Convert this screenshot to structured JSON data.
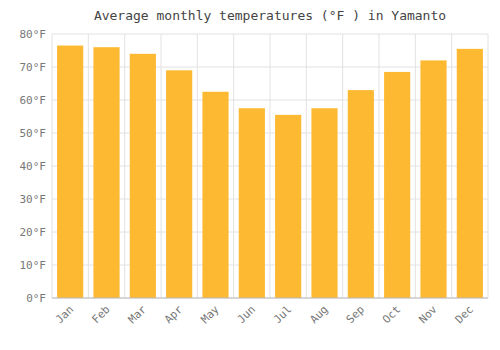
{
  "chart_data": {
    "type": "bar",
    "title": "Average monthly temperatures (°F ) in Yamanto",
    "categories": [
      "Jan",
      "Feb",
      "Mar",
      "Apr",
      "May",
      "Jun",
      "Jul",
      "Aug",
      "Sep",
      "Oct",
      "Nov",
      "Dec"
    ],
    "values": [
      76.5,
      76.0,
      74.0,
      69.0,
      62.5,
      57.5,
      55.5,
      57.5,
      63.0,
      68.5,
      72.0,
      75.5
    ],
    "color": "#FDB931",
    "ylim": [
      0,
      80
    ],
    "yticks": [
      {
        "value": 0,
        "label": "0°F"
      },
      {
        "value": 10,
        "label": "10°F"
      },
      {
        "value": 20,
        "label": "20°F"
      },
      {
        "value": 30,
        "label": "30°F"
      },
      {
        "value": 40,
        "label": "40°F"
      },
      {
        "value": 50,
        "label": "50°F"
      },
      {
        "value": 60,
        "label": "60°F"
      },
      {
        "value": 70,
        "label": "70°F"
      },
      {
        "value": 80,
        "label": "80°F"
      }
    ],
    "grid": true
  }
}
